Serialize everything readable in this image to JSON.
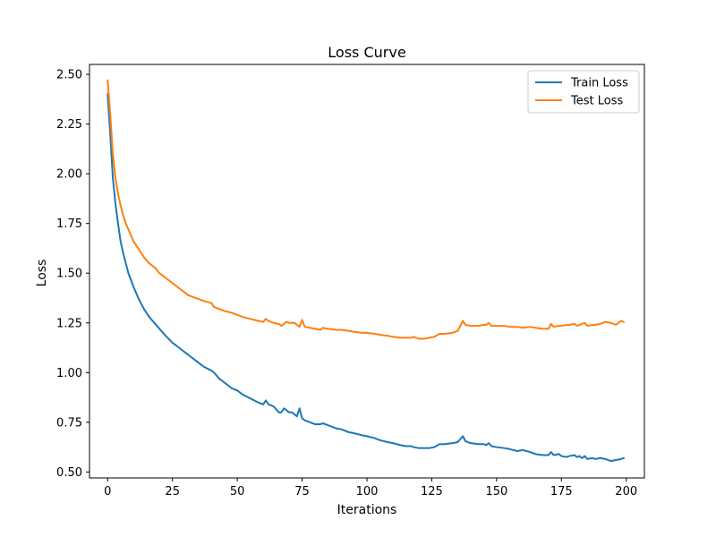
{
  "chart_data": {
    "type": "line",
    "title": "Loss Curve",
    "xlabel": "Iterations",
    "ylabel": "Loss",
    "xlim": [
      -7,
      207
    ],
    "ylim": [
      0.47,
      2.55
    ],
    "xticks": [
      0,
      25,
      50,
      75,
      100,
      125,
      150,
      175,
      200
    ],
    "yticks": [
      0.5,
      0.75,
      1.0,
      1.25,
      1.5,
      1.75,
      2.0,
      2.25,
      2.5
    ],
    "xtick_labels": [
      "0",
      "25",
      "50",
      "75",
      "100",
      "125",
      "150",
      "175",
      "200"
    ],
    "ytick_labels": [
      "0.50",
      "0.75",
      "1.00",
      "1.25",
      "1.50",
      "1.75",
      "2.00",
      "2.25",
      "2.50"
    ],
    "grid": false,
    "legend_position": "top-right",
    "series": [
      {
        "name": "Train Loss",
        "color": "#1f77b4",
        "x": [
          0,
          1,
          2,
          3,
          4,
          5,
          6,
          7,
          8,
          10,
          12,
          14,
          16,
          18,
          20,
          22,
          25,
          28,
          30,
          32,
          33,
          35,
          37,
          40,
          41,
          43,
          45,
          48,
          50,
          52,
          55,
          58,
          60,
          61,
          62,
          64,
          66,
          67,
          68,
          69,
          70,
          71,
          72,
          73,
          74,
          75,
          76,
          78,
          80,
          82,
          83,
          85,
          88,
          90,
          93,
          95,
          98,
          100,
          103,
          105,
          108,
          110,
          113,
          115,
          117,
          118,
          120,
          122,
          124,
          126,
          128,
          130,
          133,
          135,
          137,
          138,
          140,
          143,
          145,
          146,
          147,
          148,
          150,
          153,
          155,
          158,
          160,
          163,
          165,
          168,
          170,
          171,
          172,
          174,
          175,
          177,
          178,
          180,
          181,
          182,
          183,
          184,
          185,
          187,
          188,
          190,
          192,
          194,
          196,
          198,
          199
        ],
        "y": [
          2.4,
          2.2,
          1.98,
          1.85,
          1.75,
          1.66,
          1.6,
          1.55,
          1.5,
          1.43,
          1.37,
          1.32,
          1.28,
          1.25,
          1.22,
          1.19,
          1.15,
          1.12,
          1.1,
          1.08,
          1.07,
          1.05,
          1.03,
          1.01,
          1.0,
          0.97,
          0.95,
          0.92,
          0.91,
          0.89,
          0.87,
          0.85,
          0.84,
          0.86,
          0.84,
          0.83,
          0.8,
          0.8,
          0.82,
          0.81,
          0.8,
          0.8,
          0.79,
          0.78,
          0.82,
          0.77,
          0.76,
          0.75,
          0.74,
          0.74,
          0.745,
          0.735,
          0.72,
          0.715,
          0.7,
          0.695,
          0.685,
          0.68,
          0.67,
          0.66,
          0.65,
          0.645,
          0.635,
          0.63,
          0.63,
          0.625,
          0.62,
          0.62,
          0.62,
          0.625,
          0.64,
          0.64,
          0.645,
          0.65,
          0.68,
          0.655,
          0.645,
          0.64,
          0.64,
          0.635,
          0.645,
          0.63,
          0.625,
          0.62,
          0.615,
          0.605,
          0.61,
          0.6,
          0.59,
          0.585,
          0.585,
          0.6,
          0.585,
          0.59,
          0.58,
          0.575,
          0.58,
          0.585,
          0.575,
          0.58,
          0.57,
          0.58,
          0.565,
          0.57,
          0.565,
          0.57,
          0.565,
          0.555,
          0.56,
          0.565,
          0.57
        ]
      },
      {
        "name": "Test Loss",
        "color": "#ff7f0e",
        "x": [
          0,
          1,
          2,
          3,
          4,
          5,
          6,
          7,
          8,
          10,
          12,
          14,
          16,
          18,
          20,
          22,
          25,
          28,
          30,
          31,
          33,
          35,
          37,
          40,
          41,
          43,
          45,
          48,
          50,
          52,
          55,
          58,
          60,
          61,
          62,
          64,
          66,
          67,
          68,
          69,
          70,
          71,
          72,
          73,
          74,
          75,
          76,
          78,
          80,
          82,
          83,
          85,
          88,
          90,
          93,
          95,
          98,
          100,
          103,
          105,
          108,
          110,
          113,
          115,
          117,
          118,
          120,
          122,
          124,
          126,
          128,
          130,
          133,
          135,
          137,
          138,
          140,
          143,
          145,
          146,
          147,
          148,
          150,
          153,
          155,
          158,
          160,
          163,
          165,
          168,
          170,
          171,
          172,
          174,
          175,
          177,
          178,
          180,
          181,
          182,
          183,
          184,
          185,
          187,
          188,
          190,
          192,
          194,
          196,
          198,
          199
        ],
        "y": [
          2.47,
          2.3,
          2.1,
          1.98,
          1.9,
          1.84,
          1.79,
          1.75,
          1.72,
          1.66,
          1.62,
          1.58,
          1.55,
          1.53,
          1.5,
          1.48,
          1.45,
          1.42,
          1.4,
          1.39,
          1.38,
          1.37,
          1.36,
          1.35,
          1.33,
          1.32,
          1.31,
          1.3,
          1.29,
          1.28,
          1.27,
          1.26,
          1.255,
          1.27,
          1.26,
          1.25,
          1.245,
          1.235,
          1.245,
          1.255,
          1.25,
          1.25,
          1.25,
          1.24,
          1.23,
          1.265,
          1.23,
          1.225,
          1.22,
          1.215,
          1.225,
          1.22,
          1.215,
          1.215,
          1.21,
          1.205,
          1.2,
          1.2,
          1.195,
          1.19,
          1.185,
          1.18,
          1.175,
          1.175,
          1.175,
          1.18,
          1.17,
          1.17,
          1.175,
          1.18,
          1.195,
          1.195,
          1.2,
          1.21,
          1.26,
          1.24,
          1.235,
          1.235,
          1.24,
          1.24,
          1.25,
          1.235,
          1.235,
          1.235,
          1.23,
          1.23,
          1.225,
          1.23,
          1.225,
          1.22,
          1.22,
          1.245,
          1.23,
          1.235,
          1.235,
          1.24,
          1.24,
          1.245,
          1.235,
          1.24,
          1.245,
          1.25,
          1.235,
          1.24,
          1.24,
          1.245,
          1.255,
          1.25,
          1.24,
          1.26,
          1.255
        ]
      }
    ]
  }
}
